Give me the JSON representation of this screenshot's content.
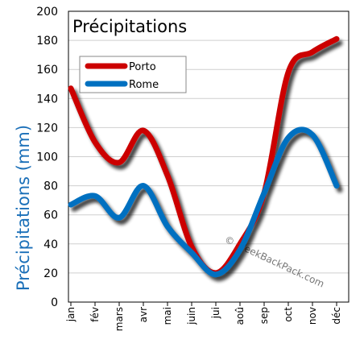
{
  "chart_data": {
    "type": "line",
    "title": "Précipitations",
    "ylabel": "Précipitations (mm)",
    "xlabel": "",
    "categories": [
      "jan",
      "fév",
      "mars",
      "avr",
      "mai",
      "juin",
      "jui",
      "aoû",
      "sep",
      "oct",
      "nov",
      "déc"
    ],
    "yticks": [
      "0",
      "20",
      "40",
      "60",
      "80",
      "100",
      "120",
      "140",
      "160",
      "180",
      "200"
    ],
    "ylim": [
      0,
      200
    ],
    "grid": true,
    "legend_position": "top-left",
    "series": [
      {
        "name": "Porto",
        "color": "#cc0000",
        "values": [
          147,
          110,
          96,
          118,
          87,
          38,
          20,
          40,
          75,
          158,
          172,
          181
        ]
      },
      {
        "name": "Rome",
        "color": "#0070c0",
        "values": [
          67,
          73,
          58,
          80,
          52,
          34,
          19,
          36,
          75,
          113,
          115,
          80
        ]
      }
    ],
    "watermark": "© WeekBackPack.com"
  },
  "colors": {
    "ylabel": "#1a6fb8",
    "grid": "#cfcfcf",
    "axis": "#000000"
  }
}
